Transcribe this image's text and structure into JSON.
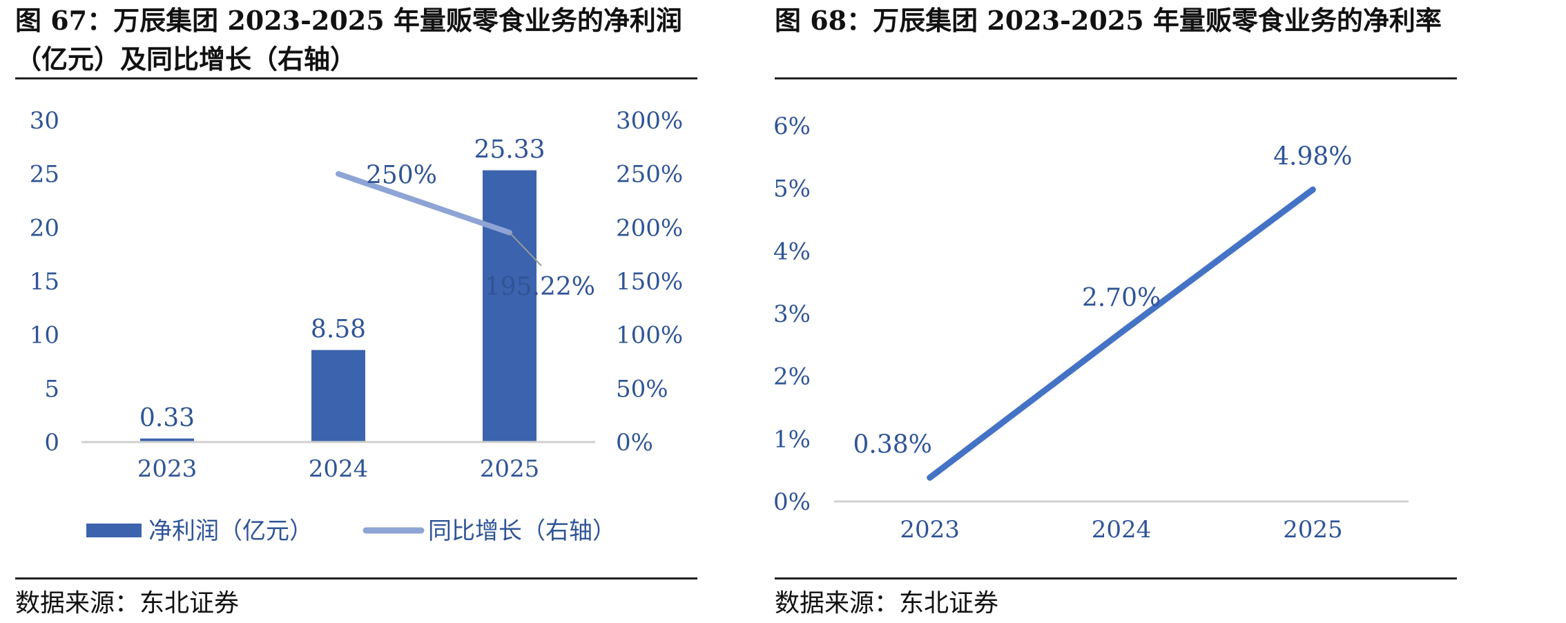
{
  "figure67": {
    "title": "图 67：万辰集团 2023-2025 年量贩零食业务的净利润（亿元）及同比增长（右轴）",
    "source": "数据来源：东北证券"
  },
  "figure68": {
    "title": "图 68：万辰集团 2023-2025 年量贩零食业务的净利率",
    "source": "数据来源：东北证券"
  },
  "colors": {
    "bar": "#3c63ad",
    "growth_line": "#8ea4d5",
    "margin_line": "#4473c5",
    "text": "#2f5496",
    "axis": "#d0d0d0"
  },
  "chart_data": [
    {
      "type": "bar",
      "categories": [
        "2023",
        "2024",
        "2025"
      ],
      "series": [
        {
          "name": "净利润（亿元）",
          "type": "bar",
          "axis": "left",
          "values": [
            0.33,
            8.58,
            25.33
          ],
          "labels": [
            "0.33",
            "8.58",
            "25.33"
          ]
        },
        {
          "name": "同比增长（右轴）",
          "type": "line",
          "axis": "right",
          "values": [
            null,
            250,
            195.22
          ],
          "labels": [
            "",
            "250%",
            "195.22%"
          ]
        }
      ],
      "ylim": [
        0,
        30
      ],
      "yticks": [
        "0",
        "5",
        "10",
        "15",
        "20",
        "25",
        "30"
      ],
      "y2lim": [
        0,
        300
      ],
      "y2ticks": [
        "0%",
        "50%",
        "100%",
        "150%",
        "200%",
        "250%",
        "300%"
      ],
      "legend": "bottom",
      "grid": false
    },
    {
      "type": "line",
      "categories": [
        "2023",
        "2024",
        "2025"
      ],
      "series": [
        {
          "values": [
            0.38,
            2.7,
            4.98
          ],
          "labels": [
            "0.38%",
            "2.70%",
            "4.98%"
          ]
        }
      ],
      "ylim": [
        0,
        6
      ],
      "yticks": [
        "0%",
        "1%",
        "2%",
        "3%",
        "4%",
        "5%",
        "6%"
      ],
      "legend": "none",
      "grid": false
    }
  ]
}
